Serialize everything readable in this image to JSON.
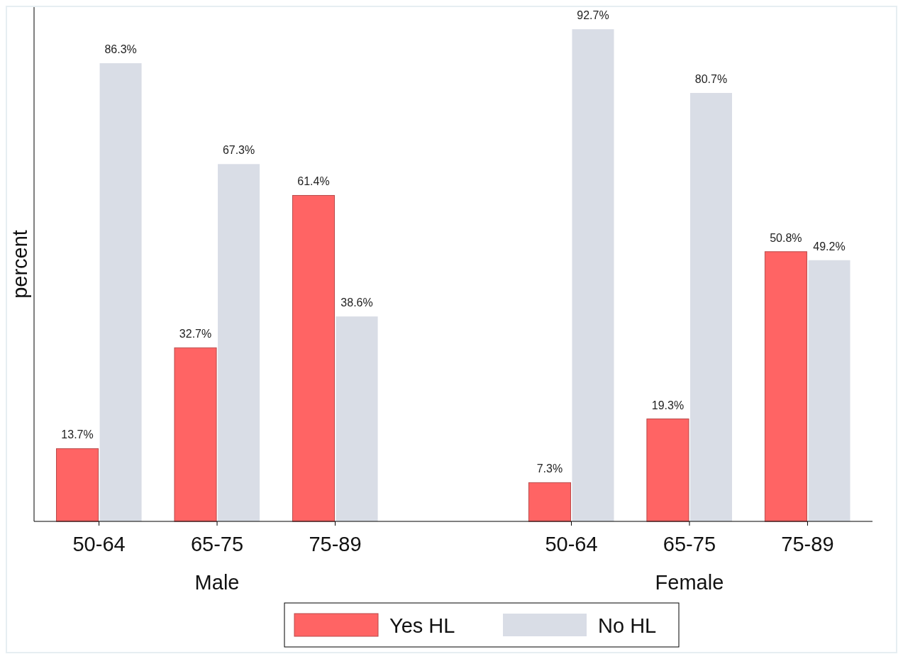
{
  "chart_data": {
    "type": "bar",
    "ylabel": "percent",
    "categories": [
      "50-64",
      "65-75",
      "75-89",
      null,
      "50-64",
      "65-75",
      "75-89"
    ],
    "series": [
      {
        "name": "Yes HL",
        "color": "#ff6464",
        "values": [
          13.7,
          32.7,
          61.4,
          null,
          7.3,
          19.3,
          50.8
        ],
        "value_labels": [
          "13.7%",
          "32.7%",
          "61.4%",
          null,
          "7.3%",
          "19.3%",
          "50.8%"
        ]
      },
      {
        "name": "No HL",
        "color": "#d9dde6",
        "values": [
          86.3,
          67.3,
          38.6,
          null,
          92.7,
          80.7,
          49.2
        ],
        "value_labels": [
          "86.3%",
          "67.3%",
          "38.6%",
          null,
          "92.7%",
          "80.7%",
          "49.2%"
        ]
      }
    ],
    "annotations": [
      "Male",
      "Female"
    ],
    "legend": "bottom"
  }
}
